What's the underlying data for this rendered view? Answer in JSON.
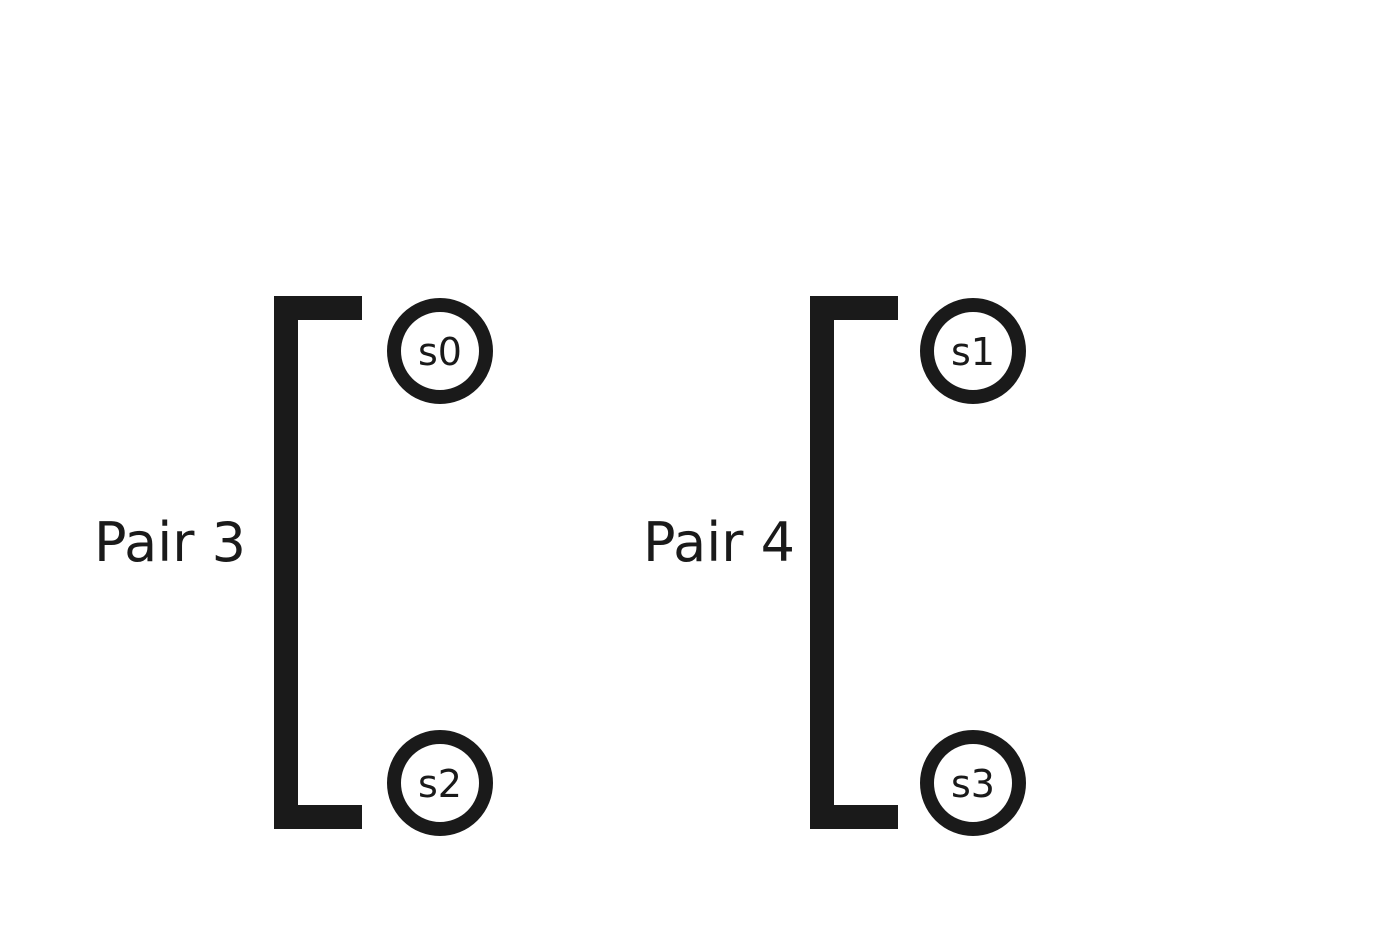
{
  "colors": {
    "ink": "#1a1a1a",
    "background": "#ffffff"
  },
  "pairs": [
    {
      "label": "Pair 3",
      "nodes": {
        "top": "s0",
        "bottom": "s2"
      }
    },
    {
      "label": "Pair 4",
      "nodes": {
        "top": "s1",
        "bottom": "s3"
      }
    }
  ]
}
